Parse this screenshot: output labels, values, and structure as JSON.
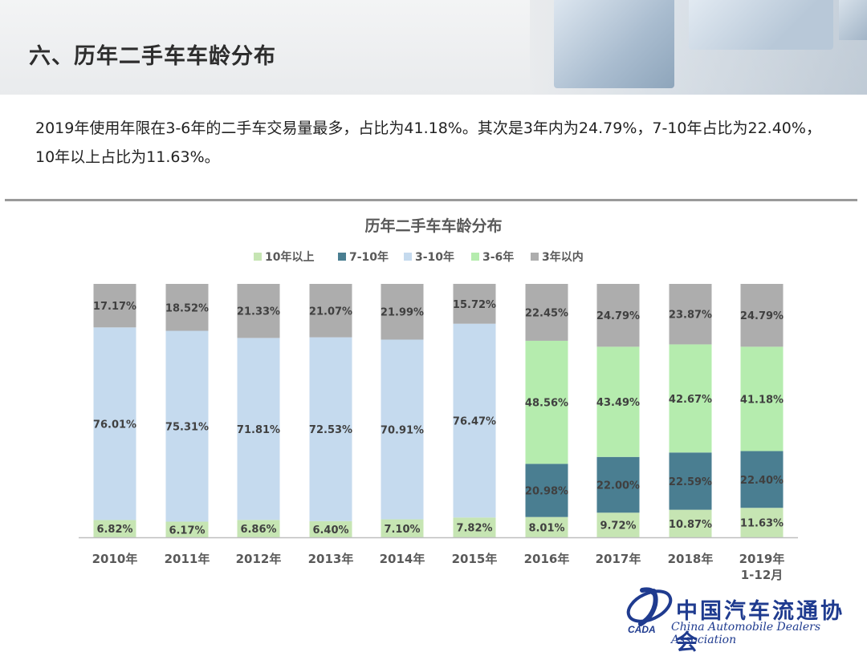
{
  "header": {
    "title": "六、历年二手车车龄分布"
  },
  "description": "2019年使用年限在3-6年的二手车交易量最多，占比为41.18%。其次是3年内为24.79%，7-10年占比为22.40%，10年以上占比为11.63%。",
  "logo": {
    "chinese": "中国汽车流通协会",
    "english": "China Automobile Dealers Association",
    "abbr": "CADA"
  },
  "chart_data": {
    "type": "bar",
    "stacked": true,
    "percent": true,
    "title": "历年二手车车龄分布",
    "legend_position": "top",
    "categories": [
      "2010年",
      "2011年",
      "2012年",
      "2013年",
      "2014年",
      "2015年",
      "2016年",
      "2017年",
      "2018年",
      "2019年\n1-12月"
    ],
    "series": [
      {
        "name": "10年以上",
        "color": "#c6e5b3",
        "values": [
          6.82,
          6.17,
          6.86,
          6.4,
          7.1,
          7.82,
          8.01,
          9.72,
          10.87,
          11.63
        ]
      },
      {
        "name": "7-10年",
        "color": "#4a7e91",
        "values": [
          null,
          null,
          null,
          null,
          null,
          null,
          20.98,
          22.0,
          22.59,
          22.4
        ]
      },
      {
        "name": "3-10年",
        "color": "#c5daee",
        "values": [
          76.01,
          75.31,
          71.81,
          72.53,
          70.91,
          76.47,
          null,
          null,
          null,
          null
        ]
      },
      {
        "name": "3-6年",
        "color": "#b5ecae",
        "values": [
          null,
          null,
          null,
          null,
          null,
          null,
          48.56,
          43.49,
          42.67,
          41.18
        ]
      },
      {
        "name": "3年以内",
        "color": "#adadad",
        "values": [
          17.17,
          18.52,
          21.33,
          21.07,
          21.99,
          15.72,
          22.45,
          24.79,
          23.87,
          24.79
        ]
      }
    ],
    "labels": {
      "10年以上": [
        "6.82%",
        "6.17%",
        "6.86%",
        "6.40%",
        "7.10%",
        "7.82%",
        "8.01%",
        "9.72%",
        "10.87%",
        "11.63%"
      ],
      "7-10年": [
        "",
        "",
        "",
        "",
        "",
        "",
        "20.98%",
        "22.00%",
        "22.59%",
        "22.40%"
      ],
      "3-10年": [
        "76.01%",
        "75.31%",
        "71.81%",
        "72.53%",
        "70.91%",
        "76.47%",
        "",
        "",
        "",
        ""
      ],
      "3-6年": [
        "",
        "",
        "",
        "",
        "",
        "",
        "48.56%",
        "43.49%",
        "42.67%",
        "41.18%"
      ],
      "3年以内": [
        "17.17%",
        "18.52%",
        "21.33%",
        "21.07%",
        "21.99%",
        "15.72%",
        "22.45%",
        "24.79%",
        "23.87%",
        "24.79%"
      ]
    },
    "ylim": [
      0,
      100
    ],
    "grid": false
  }
}
